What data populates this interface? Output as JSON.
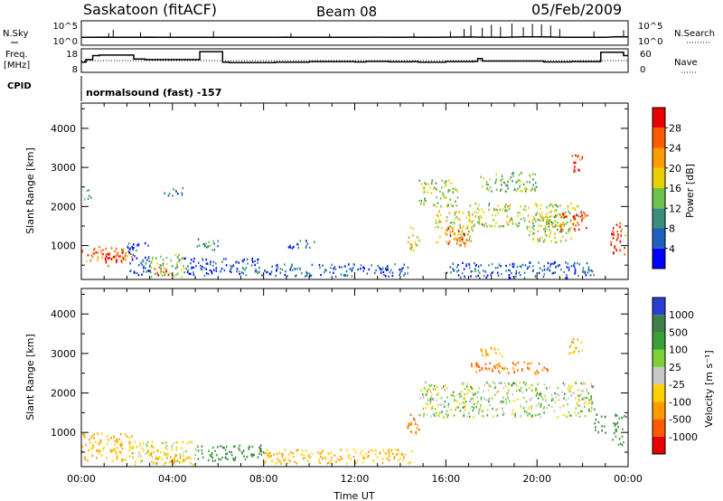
{
  "header": {
    "station": "Saskatoon (fitACF)",
    "beam": "Beam 08",
    "date": "05/Feb/2009"
  },
  "noise_panel": {
    "left_label": "N.Sky",
    "right_label": "N.Search",
    "left_ticks": [
      "10^5",
      "10^0"
    ],
    "right_ticks": [
      "10^5",
      "10^0"
    ]
  },
  "freq_panel": {
    "left_label_line1": "Freq.",
    "left_label_line2": "[MHz]",
    "right_label": "Nave",
    "left_ticks": [
      "18",
      "8"
    ],
    "right_ticks": [
      "60",
      "0"
    ]
  },
  "cpid": {
    "label": "CPID",
    "value": "normalsound (fast) -157"
  },
  "x_axis": {
    "label": "Time UT",
    "ticks": [
      "00:00",
      "04:00",
      "08:00",
      "12:00",
      "16:00",
      "20:00",
      "00:00"
    ]
  },
  "power_panel": {
    "ylabel": "Slant Range [km]",
    "yticks": [
      "1000",
      "2000",
      "3000",
      "4000"
    ],
    "colorbar_label": "Power [dB]",
    "colorbar_ticks": [
      "4",
      "8",
      "12",
      "16",
      "20",
      "24",
      "28"
    ],
    "colors": [
      "#0000ff",
      "#1f5fbf",
      "#3b8f7a",
      "#6cc24a",
      "#e8d000",
      "#ff9a00",
      "#ff5a00",
      "#e80000"
    ]
  },
  "velocity_panel": {
    "ylabel": "Slant Range [km]",
    "yticks": [
      "1000",
      "2000",
      "3000",
      "4000"
    ],
    "colorbar_label": "Velocity [m s⁻¹]",
    "colorbar_ticks": [
      "1000",
      "500",
      "100",
      "25",
      "-25",
      "-100",
      "-500",
      "-1000"
    ],
    "colors": [
      "#2a3fd0",
      "#3f7f4a",
      "#3aa03a",
      "#7fd13a",
      "#c8c8c8",
      "#ffd000",
      "#ff9a00",
      "#ff5a00",
      "#e80000"
    ]
  },
  "chart_data": [
    {
      "type": "line",
      "title": "N.Sky / N.Search",
      "x_range_hours": [
        0,
        24
      ],
      "yscale": "log",
      "ylim": [
        1,
        100000
      ],
      "series": [
        {
          "name": "N.Sky",
          "x": [
            0,
            0.5,
            1,
            1.5,
            2,
            2.5,
            3,
            3.5,
            4,
            4.5,
            5,
            5.5,
            6,
            6.5,
            7,
            7.5,
            8,
            8.5,
            9,
            9.5,
            10,
            10.5,
            11,
            11.5,
            12,
            12.5,
            13,
            13.5,
            14,
            14.5,
            15,
            15.5,
            16,
            16.5,
            17,
            17.5,
            18,
            18.5,
            19,
            19.5,
            20,
            20.5,
            21,
            21.5,
            22,
            22.5,
            23,
            23.5,
            24
          ],
          "values": [
            30,
            28,
            32,
            30,
            30,
            29,
            31,
            30,
            30,
            28,
            30,
            29,
            30,
            28,
            29,
            30,
            30,
            29,
            31,
            30,
            30,
            28,
            30,
            30,
            29,
            30,
            31,
            30,
            30,
            32,
            30,
            30,
            31,
            33,
            35,
            32,
            31,
            30,
            34,
            36,
            38,
            35,
            32,
            30,
            30,
            28,
            30,
            40,
            38
          ]
        },
        {
          "name": "N.Search",
          "x": [
            1.2,
            1.4,
            2.6,
            3.9,
            5.8,
            9.2,
            10.9,
            14.6,
            16.2,
            16.8,
            17.1,
            17.6,
            18.0,
            18.4,
            18.9,
            19.4,
            19.8,
            20.2,
            20.6,
            21.0,
            22.5,
            23.8
          ],
          "values": [
            300,
            2000,
            500,
            400,
            900,
            300,
            200,
            300,
            800,
            3000,
            20000,
            6000,
            30000,
            10000,
            60000,
            8000,
            50000,
            40000,
            20000,
            3000,
            800,
            1500
          ]
        }
      ]
    },
    {
      "type": "line",
      "title": "Freq. / Nave",
      "x_range_hours": [
        0,
        24
      ],
      "ylim": [
        8,
        18
      ],
      "series": [
        {
          "name": "Freq. [MHz]",
          "x": [
            0,
            0.2,
            0.5,
            0.8,
            2.0,
            2.3,
            2.8,
            5.0,
            5.2,
            5.8,
            6.2,
            6.5,
            8.0,
            8.5,
            10.0,
            12.0,
            12.5,
            13.5,
            14.5,
            14.8,
            16.0,
            17.2,
            17.4,
            17.6,
            20.0,
            20.3,
            21.5,
            22.5,
            22.8,
            23.5,
            23.8,
            24
          ],
          "values": [
            12.2,
            13.5,
            15.5,
            15.8,
            15.8,
            13.8,
            13.5,
            13.5,
            17.5,
            17.5,
            12.2,
            12.0,
            12.0,
            12.2,
            12.5,
            12.3,
            12.6,
            12.4,
            12.5,
            12.2,
            12.5,
            12.6,
            14.0,
            12.8,
            12.8,
            12.3,
            12.5,
            12.5,
            17.2,
            17.2,
            15.5,
            15.5
          ]
        },
        {
          "name": "Nave",
          "x": [
            0,
            0.5,
            2.0,
            4.0,
            6.0,
            8.0,
            12.0,
            14.0,
            16.0,
            18.0,
            20.0,
            21.0,
            22.0,
            23.0,
            24
          ],
          "values": [
            28,
            30,
            30,
            30,
            30,
            30,
            30,
            30,
            30,
            30,
            30,
            30,
            30,
            30,
            30
          ]
        }
      ]
    },
    {
      "type": "heatmap",
      "title": "Power [dB]",
      "xlabel": "Time UT",
      "ylabel": "Slant Range [km]",
      "x_range_hours": [
        0,
        24
      ],
      "ylim": [
        180,
        4600
      ],
      "zlim": [
        0,
        32
      ],
      "regions": [
        {
          "t0": 0.0,
          "t1": 2.2,
          "r0": 600,
          "r1": 1000,
          "power": 24
        },
        {
          "t0": 0.8,
          "t1": 1.8,
          "r0": 500,
          "r1": 850,
          "power": 30
        },
        {
          "t0": 0.0,
          "t1": 0.4,
          "r0": 2200,
          "r1": 2450,
          "power": 10
        },
        {
          "t0": 2.0,
          "t1": 3.0,
          "r0": 200,
          "r1": 1100,
          "power": 6
        },
        {
          "t0": 3.0,
          "t1": 4.5,
          "r0": 200,
          "r1": 800,
          "power": 14
        },
        {
          "t0": 3.2,
          "t1": 3.8,
          "r0": 250,
          "r1": 500,
          "power": 26
        },
        {
          "t0": 3.5,
          "t1": 4.5,
          "r0": 2300,
          "r1": 2500,
          "power": 6
        },
        {
          "t0": 4.5,
          "t1": 8.0,
          "r0": 250,
          "r1": 700,
          "power": 6
        },
        {
          "t0": 5.0,
          "t1": 6.0,
          "r0": 900,
          "r1": 1200,
          "power": 10
        },
        {
          "t0": 8.0,
          "t1": 14.5,
          "r0": 230,
          "r1": 550,
          "power": 7
        },
        {
          "t0": 9.0,
          "t1": 10.2,
          "r0": 950,
          "r1": 1150,
          "power": 6
        },
        {
          "t0": 14.3,
          "t1": 14.8,
          "r0": 900,
          "r1": 1500,
          "power": 18
        },
        {
          "t0": 14.8,
          "t1": 16.5,
          "r0": 2000,
          "r1": 2700,
          "power": 15
        },
        {
          "t0": 15.5,
          "t1": 17.2,
          "r0": 1100,
          "r1": 1900,
          "power": 18
        },
        {
          "t0": 16.0,
          "t1": 17.0,
          "r0": 1000,
          "r1": 1500,
          "power": 26
        },
        {
          "t0": 17.0,
          "t1": 21.8,
          "r0": 1500,
          "r1": 2100,
          "power": 16
        },
        {
          "t0": 17.5,
          "t1": 20.0,
          "r0": 2400,
          "r1": 2900,
          "power": 14
        },
        {
          "t0": 19.5,
          "t1": 21.5,
          "r0": 1100,
          "r1": 1800,
          "power": 16
        },
        {
          "t0": 21.0,
          "t1": 22.2,
          "r0": 1400,
          "r1": 1900,
          "power": 28
        },
        {
          "t0": 21.5,
          "t1": 22.0,
          "r0": 2900,
          "r1": 3400,
          "power": 26
        },
        {
          "t0": 23.2,
          "t1": 23.9,
          "r0": 800,
          "r1": 1600,
          "power": 28
        },
        {
          "t0": 16.0,
          "t1": 22.5,
          "r0": 200,
          "r1": 600,
          "power": 6
        }
      ]
    },
    {
      "type": "heatmap",
      "title": "Velocity [m s⁻¹]",
      "xlabel": "Time UT",
      "ylabel": "Slant Range [km]",
      "x_range_hours": [
        0,
        24
      ],
      "ylim": [
        180,
        4600
      ],
      "zlim": [
        -1000,
        1000
      ],
      "regions": [
        {
          "t0": 0.0,
          "t1": 2.2,
          "r0": 300,
          "r1": 1000,
          "velocity": -100
        },
        {
          "t0": 2.2,
          "t1": 5.0,
          "r0": 200,
          "r1": 800,
          "velocity": -25
        },
        {
          "t0": 3.0,
          "t1": 4.5,
          "r0": 200,
          "r1": 500,
          "velocity": -100
        },
        {
          "t0": 5.0,
          "t1": 8.0,
          "r0": 300,
          "r1": 700,
          "velocity": 100
        },
        {
          "t0": 8.0,
          "t1": 14.5,
          "r0": 230,
          "r1": 600,
          "velocity": -100
        },
        {
          "t0": 14.3,
          "t1": 14.8,
          "r0": 900,
          "r1": 1500,
          "velocity": -500
        },
        {
          "t0": 14.8,
          "t1": 22.5,
          "r0": 1400,
          "r1": 2300,
          "velocity": 0
        },
        {
          "t0": 17.0,
          "t1": 20.5,
          "r0": 2500,
          "r1": 2800,
          "velocity": -500
        },
        {
          "t0": 17.5,
          "t1": 18.5,
          "r0": 2900,
          "r1": 3200,
          "velocity": -100
        },
        {
          "t0": 21.3,
          "t1": 22.0,
          "r0": 3000,
          "r1": 3400,
          "velocity": -100
        },
        {
          "t0": 22.5,
          "t1": 23.0,
          "r0": 1000,
          "r1": 1500,
          "velocity": 100
        },
        {
          "t0": 23.3,
          "t1": 23.9,
          "r0": 700,
          "r1": 1500,
          "velocity": 100
        }
      ]
    }
  ]
}
